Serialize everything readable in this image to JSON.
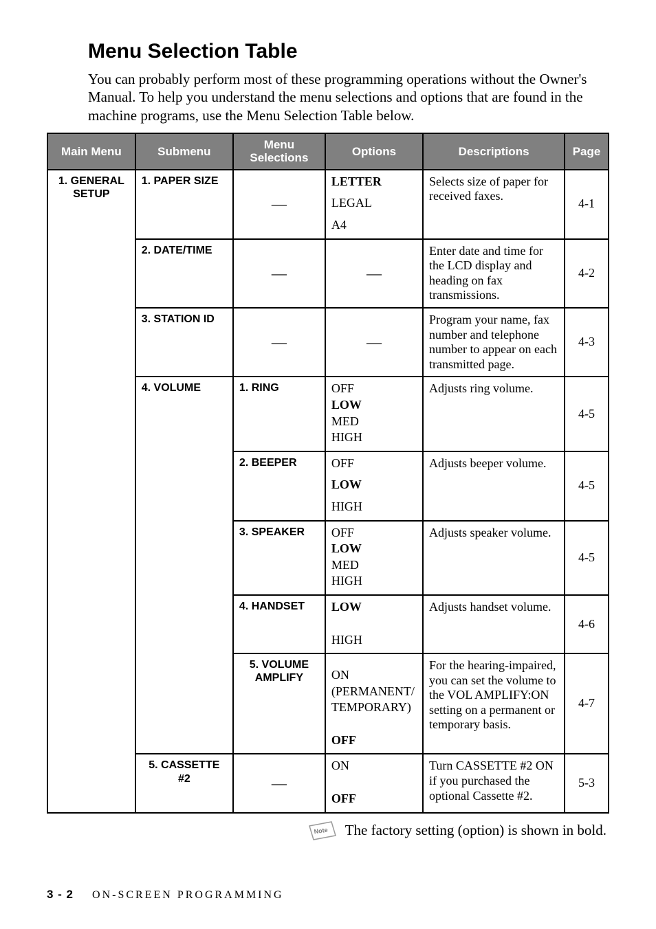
{
  "title": "Menu Selection Table",
  "intro": "You can probably perform most of these programming operations without the Owner's Manual. To help you understand the menu selections and options that are found in the machine programs, use the Menu Selection Table below.",
  "headers": {
    "main_menu": "Main Menu",
    "submenu": "Submenu",
    "menu_selections_l1": "Menu",
    "menu_selections_l2": "Selections",
    "options": "Options",
    "descriptions": "Descriptions",
    "page": "Page"
  },
  "col_widths": {
    "main_menu": 124,
    "submenu": 138,
    "menu_selections": 130,
    "options": 138,
    "descriptions": 200,
    "page": 62
  },
  "main_menu_l1": "1. GENERAL",
  "main_menu_l2": "SETUP",
  "rows": [
    {
      "submenu": "1. PAPER SIZE",
      "menu_sel": "—",
      "options": [
        {
          "text": "LETTER",
          "bold": true
        },
        {
          "text": "LEGAL",
          "bold": false,
          "gap": true
        },
        {
          "text": "A4",
          "bold": false,
          "gap": true
        }
      ],
      "desc": "Selects size of paper for received faxes.",
      "page": "4-1"
    },
    {
      "submenu": "2. DATE/TIME",
      "menu_sel": "—",
      "options_dash": "—",
      "desc": "Enter date and time for the LCD display and heading on fax transmissions.",
      "page": "4-2"
    },
    {
      "submenu": "3. STATION ID",
      "menu_sel": "—",
      "options_dash": "—",
      "desc": "Program your name, fax number and telephone number to appear on each transmitted page.",
      "page": "4-3"
    }
  ],
  "volume_submenu": "4. VOLUME",
  "volume_rows": [
    {
      "menu_sel": "1. RING",
      "options": [
        {
          "text": "OFF",
          "bold": false
        },
        {
          "text": "LOW",
          "bold": true
        },
        {
          "text": "MED",
          "bold": false
        },
        {
          "text": "HIGH",
          "bold": false
        }
      ],
      "desc": "Adjusts ring volume.",
      "page": "4-5"
    },
    {
      "menu_sel": "2. BEEPER",
      "options": [
        {
          "text": "OFF",
          "bold": false
        },
        {
          "text": "LOW",
          "bold": true,
          "gap": true
        },
        {
          "text": "HIGH",
          "bold": false,
          "gap": true
        }
      ],
      "desc": "Adjusts beeper volume.",
      "page": "4-5"
    },
    {
      "menu_sel": "3. SPEAKER",
      "options": [
        {
          "text": "OFF",
          "bold": false
        },
        {
          "text": "LOW",
          "bold": true
        },
        {
          "text": "MED",
          "bold": false
        },
        {
          "text": "HIGH",
          "bold": false
        }
      ],
      "desc": "Adjusts speaker volume.",
      "page": "4-5"
    },
    {
      "menu_sel": "4. HANDSET",
      "options": [
        {
          "text": "LOW",
          "bold": true
        },
        {
          "text": "HIGH",
          "bold": false,
          "biggap": true
        }
      ],
      "desc": "Adjusts handset volume.",
      "page": "4-6"
    },
    {
      "menu_sel_l1": "5. VOLUME",
      "menu_sel_l2": "AMPLIFY",
      "options": [
        {
          "text": "ON",
          "bold": false,
          "topgap": true
        },
        {
          "text": "(PERMANENT/",
          "bold": false
        },
        {
          "text": "TEMPORARY)",
          "bold": false
        },
        {
          "text": "OFF",
          "bold": true,
          "biggap": true
        }
      ],
      "desc": "For the hearing-impaired, you can set the volume to the VOL AMPLIFY:ON setting on a permanent or temporary basis.",
      "page": "4-7"
    }
  ],
  "cassette_row": {
    "submenu_l1": "5. CASSETTE",
    "submenu_l2": "#2",
    "menu_sel": "—",
    "options": [
      {
        "text": "ON",
        "bold": false
      },
      {
        "text": "OFF",
        "bold": true,
        "biggap": true
      }
    ],
    "desc": "Turn CASSETTE #2 ON if you purchased the optional Cassette #2.",
    "page": "5-3"
  },
  "note_label": "Note",
  "note_text": "The factory setting (option) is shown in bold.",
  "footer_page": "3 - 2",
  "footer_text": "ON-SCREEN PROGRAMMING"
}
